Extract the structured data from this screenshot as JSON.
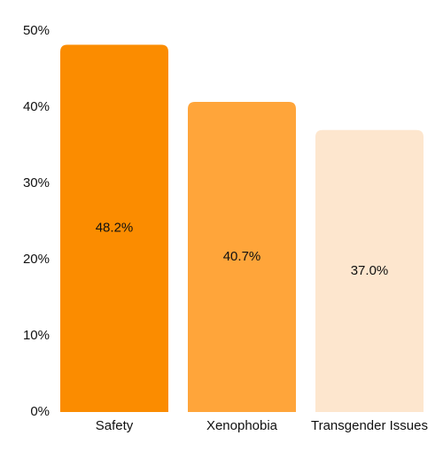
{
  "chart_data": {
    "type": "bar",
    "categories": [
      "Safety",
      "Xenophobia",
      "Transgender Issues"
    ],
    "values": [
      48.2,
      40.7,
      37.0
    ],
    "data_labels": [
      "48.2%",
      "40.7%",
      "37.0%"
    ],
    "colors": [
      "#fb8c00",
      "#ffa53a",
      "#fde6ce"
    ],
    "ylim": [
      0,
      50
    ],
    "yticks": [
      0,
      10,
      20,
      30,
      40,
      50
    ],
    "ytick_labels": [
      "0%",
      "10%",
      "20%",
      "30%",
      "40%",
      "50%"
    ],
    "grid": false,
    "legend": "none"
  }
}
